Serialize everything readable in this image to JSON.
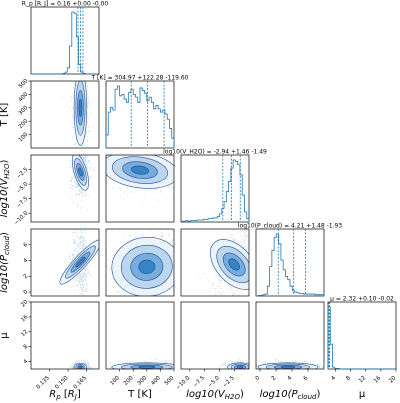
{
  "chart_data": {
    "type": "corner",
    "color": "#1f77b4",
    "params": [
      {
        "id": "rp",
        "label_main": "R",
        "label_sub": "p",
        "label_unit_main": "R",
        "label_unit_sub": "J",
        "title": "R_p [R_J] = 0.16 +0.00 -0.00",
        "median": 0.16,
        "plus": 0.0,
        "minus": 0.0,
        "range": [
          0.12,
          0.175
        ],
        "ticks": [
          0.135,
          0.15,
          0.165
        ],
        "tick_labels": [
          "0.135",
          "0.150",
          "0.165"
        ],
        "quantiles": [
          0.158,
          0.16,
          0.162
        ],
        "hist": [
          0,
          0,
          0,
          0,
          0,
          0,
          0,
          0,
          0,
          0,
          0,
          0,
          0,
          0,
          1,
          3,
          10,
          45,
          100,
          98,
          60,
          15,
          3,
          1,
          0,
          0,
          0,
          0,
          0,
          0
        ]
      },
      {
        "id": "t",
        "label_main": "T [K]",
        "title": "T [K] = 304.97 +122.28 -119.60",
        "median": 304.97,
        "plus": 122.28,
        "minus": 119.6,
        "range": [
          0,
          500
        ],
        "ticks": [
          100,
          200,
          300,
          400,
          500
        ],
        "tick_labels": [
          "100",
          "200",
          "300",
          "400",
          "500"
        ],
        "quantiles": [
          185.37,
          304.97,
          427.25
        ],
        "hist": [
          20,
          55,
          62,
          58,
          90,
          95,
          80,
          82,
          75,
          70,
          85,
          90,
          82,
          78,
          70,
          92,
          88,
          84,
          72,
          78,
          70,
          60,
          65,
          60,
          55,
          58,
          52,
          44,
          30,
          15
        ]
      },
      {
        "id": "vh2o",
        "label_main": "log10(V",
        "label_sub": "H2O",
        "title": "log10(V_H2O) = -2.94 +1.46 -1.49",
        "median": -2.94,
        "plus": 1.46,
        "minus": 1.49,
        "range": [
          -11.5,
          0
        ],
        "ticks": [
          -10,
          -7.5,
          -5,
          -2.5
        ],
        "tick_labels": [
          "-10.0",
          "-7.5",
          "-5.0",
          "-2.5"
        ],
        "quantiles": [
          -4.43,
          -2.94,
          -1.48
        ],
        "hist": [
          1,
          1,
          2,
          1,
          2,
          2,
          2,
          3,
          3,
          3,
          4,
          4,
          5,
          5,
          6,
          6,
          8,
          12,
          20,
          30,
          45,
          60,
          80,
          92,
          90,
          85,
          70,
          40,
          15,
          5
        ]
      },
      {
        "id": "pcloud",
        "label_main": "log10(P",
        "label_sub": "cloud",
        "title": "log10(P_cloud) = 4.21 +1.48 -1.93",
        "median": 4.21,
        "plus": 1.48,
        "minus": 1.93,
        "range": [
          -0.5,
          8
        ],
        "ticks": [
          0,
          2,
          4,
          6
        ],
        "tick_labels": [
          "0",
          "2",
          "4",
          "6"
        ],
        "quantiles": [
          2.28,
          4.21,
          5.69
        ],
        "hist": [
          0,
          1,
          1,
          2,
          3,
          15,
          45,
          70,
          90,
          95,
          80,
          55,
          40,
          30,
          25,
          15,
          8,
          6,
          5,
          4,
          4,
          3,
          3,
          3,
          3,
          3,
          2,
          2,
          2,
          2
        ]
      },
      {
        "id": "mu",
        "label_main": "μ",
        "title": "μ = 2.32 +0.10 -0.02",
        "median": 2.32,
        "plus": 0.1,
        "minus": 0.02,
        "range": [
          2,
          20
        ],
        "ticks": [
          4,
          8,
          12,
          16,
          20
        ],
        "tick_labels": [
          "4",
          "8",
          "12",
          "16",
          "20"
        ],
        "quantiles": [
          2.3,
          2.32,
          2.42
        ],
        "hist": [
          100,
          40,
          3,
          1,
          1,
          0,
          0,
          0,
          0,
          0,
          0,
          0,
          0,
          0,
          0,
          0,
          0,
          0,
          0,
          0,
          0,
          0,
          0,
          0,
          0,
          0,
          0,
          0,
          0,
          0
        ]
      }
    ],
    "pairs": [
      {
        "x": "rp",
        "y": "t",
        "cx": 0.16,
        "cy": 300,
        "sx": 0.0022,
        "sy": 120,
        "rho": 0
      },
      {
        "x": "rp",
        "y": "vh2o",
        "cx": 0.16,
        "cy": -2.9,
        "sx": 0.0022,
        "sy": 1.4,
        "rho": 0.1
      },
      {
        "x": "rp",
        "y": "pcloud",
        "cx": 0.16,
        "cy": 3.8,
        "sx": 0.0022,
        "sy": 1.6,
        "rho": -0.2
      },
      {
        "x": "rp",
        "y": "mu",
        "cx": 0.16,
        "cy": 2.4,
        "sx": 0.0022,
        "sy": 0.5,
        "rho": 0
      },
      {
        "x": "t",
        "y": "vh2o",
        "cx": 250,
        "cy": -2.6,
        "sx": 120,
        "sy": 1.3,
        "rho": -0.3
      },
      {
        "x": "t",
        "y": "pcloud",
        "cx": 300,
        "cy": 3.2,
        "sx": 110,
        "sy": 1.6,
        "rho": 0.1
      },
      {
        "x": "t",
        "y": "mu",
        "cx": 300,
        "cy": 2.5,
        "sx": 110,
        "sy": 0.5,
        "rho": 0
      },
      {
        "x": "vh2o",
        "y": "pcloud",
        "cx": -2.5,
        "cy": 3.5,
        "sx": 1.3,
        "sy": 1.6,
        "rho": 0.55
      },
      {
        "x": "vh2o",
        "y": "mu",
        "cx": -1.5,
        "cy": 2.5,
        "sx": 0.9,
        "sy": 0.5,
        "rho": 0
      },
      {
        "x": "pcloud",
        "y": "mu",
        "cx": 3.5,
        "cy": 2.5,
        "sx": 1.6,
        "sy": 0.5,
        "rho": 0
      }
    ]
  }
}
